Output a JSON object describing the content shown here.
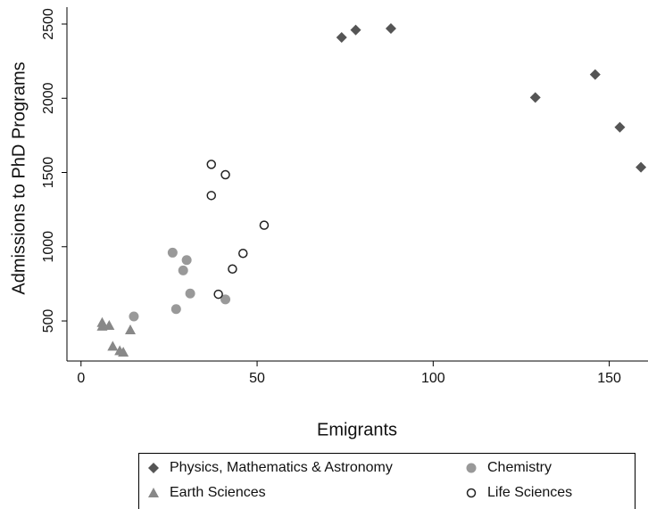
{
  "chart_data": {
    "type": "scatter",
    "xlabel": "Emigrants",
    "ylabel": "Admissions to PhD Programs",
    "xlim": [
      -4,
      161
    ],
    "ylim": [
      230,
      2614
    ],
    "xticks": [
      0,
      50,
      100,
      150
    ],
    "yticks": [
      500,
      1000,
      1500,
      2000,
      2500
    ],
    "legend": "bottom",
    "series": [
      {
        "name": "Physics, Mathematics & Astronomy",
        "color": "#555555",
        "marker": "diamond",
        "x": [
          74,
          78,
          88,
          129,
          146,
          153,
          159
        ],
        "values": [
          2410,
          2460,
          2470,
          2005,
          2160,
          1805,
          1535
        ]
      },
      {
        "name": "Chemistry",
        "color": "#999999",
        "marker": "circle",
        "x": [
          26,
          30,
          29,
          31,
          27,
          41,
          15
        ],
        "values": [
          960,
          910,
          840,
          685,
          580,
          645,
          530
        ]
      },
      {
        "name": "Earth Sciences",
        "color": "#888888",
        "marker": "triangle",
        "x": [
          6,
          8,
          6,
          14,
          9,
          11,
          12
        ],
        "values": [
          490,
          470,
          465,
          440,
          330,
          300,
          290
        ]
      },
      {
        "name": "Life Sciences",
        "color": "#222222",
        "marker": "open-circle",
        "x": [
          37,
          41,
          37,
          52,
          46,
          43,
          39
        ],
        "values": [
          1555,
          1485,
          1345,
          1145,
          955,
          850,
          680
        ]
      }
    ]
  }
}
